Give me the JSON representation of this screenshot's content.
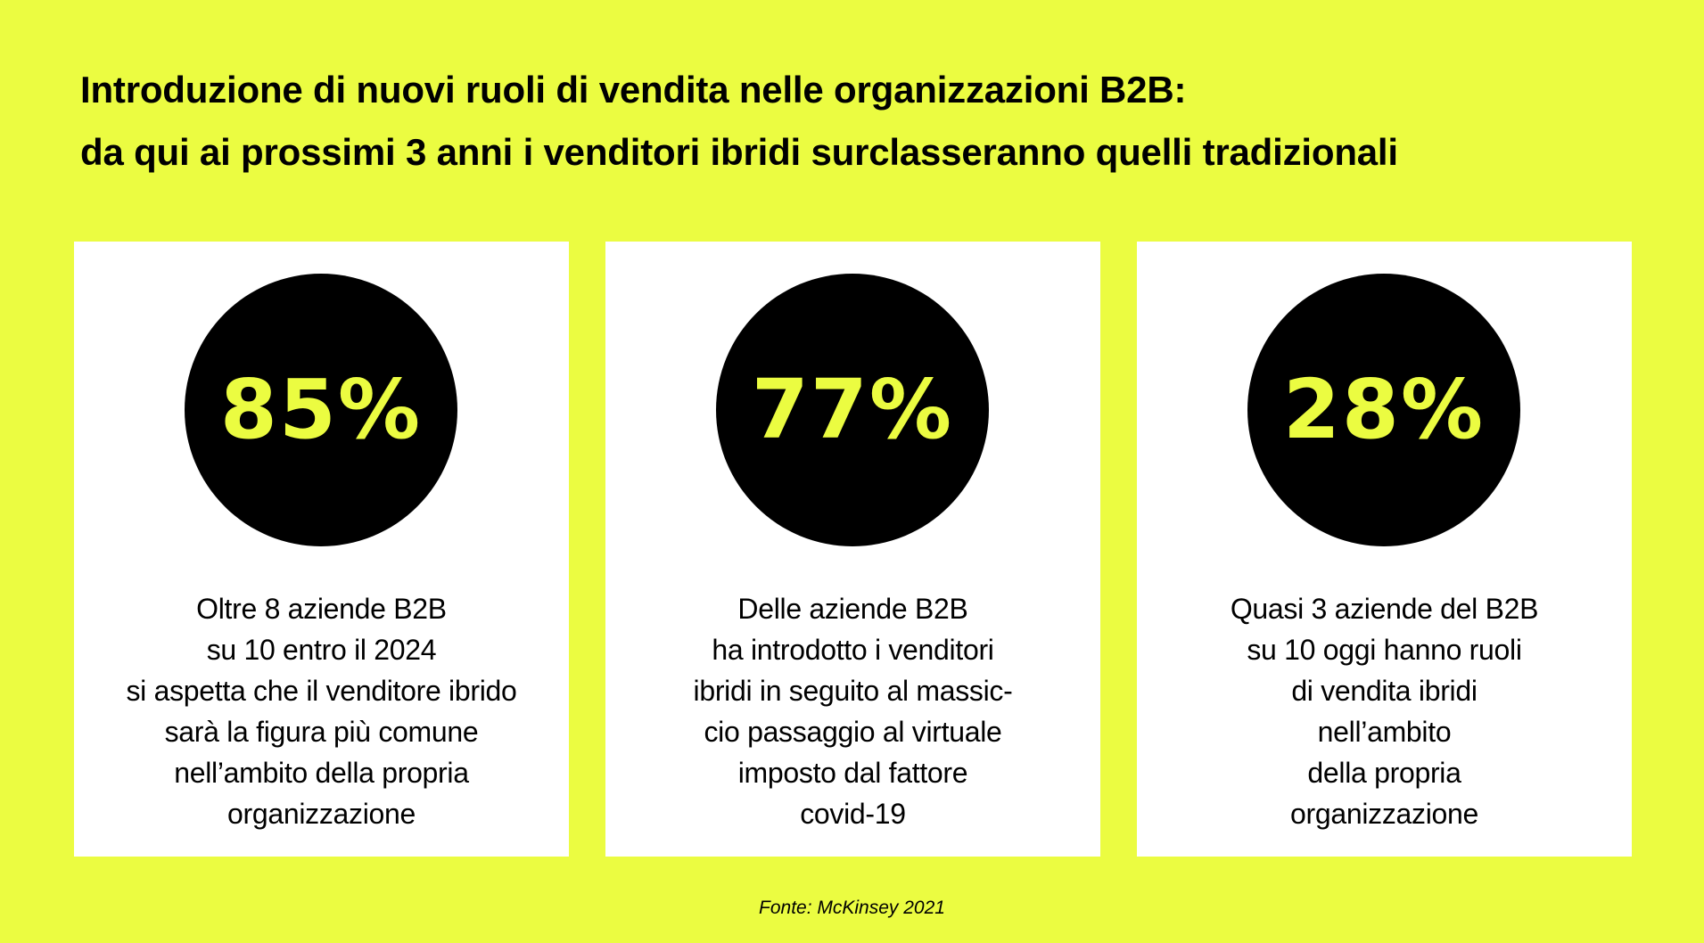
{
  "title": {
    "line1": "Introduzione di nuovi ruoli di vendita nelle organizzazioni B2B:",
    "line2": "da qui ai prossimi 3 anni i venditori ibridi surclasseranno quelli tradizionali"
  },
  "cards": [
    {
      "value": "85%",
      "lines": [
        "Oltre 8 aziende B2B",
        "su 10 entro il 2024",
        "si aspetta che il venditore ibrido",
        "sarà la figura più comune",
        "nell’ambito della propria",
        "organizzazione"
      ]
    },
    {
      "value": "77%",
      "lines": [
        "Delle aziende B2B",
        "ha introdotto i venditori",
        "ibridi in seguito al massic-",
        "cio passaggio al virtuale",
        "imposto dal fattore",
        "covid-19"
      ]
    },
    {
      "value": "28%",
      "lines": [
        "Quasi 3 aziende del B2B",
        "su 10 oggi hanno ruoli",
        "di vendita ibridi",
        "nell’ambito",
        "della propria",
        "organizzazione"
      ]
    }
  ],
  "source": "Fonte: McKinsey 2021",
  "colors": {
    "background": "#ebfc41",
    "circle": "#000000",
    "card": "#ffffff",
    "accent_text": "#ebfc41"
  }
}
